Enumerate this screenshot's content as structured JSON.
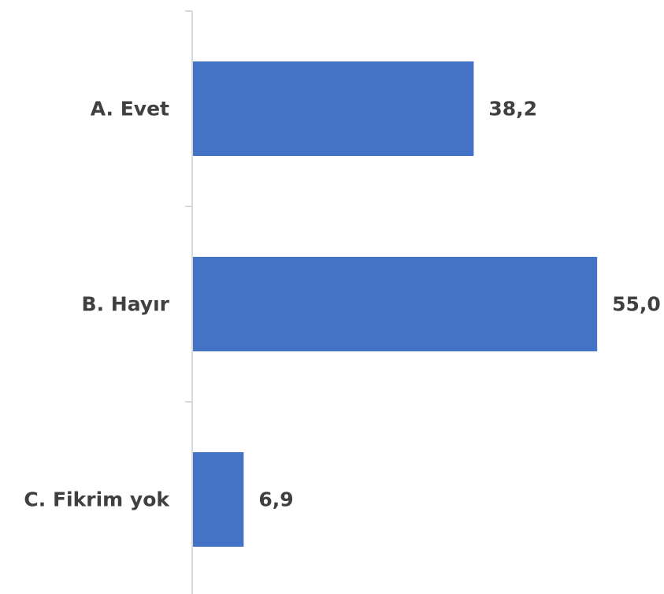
{
  "chart_data": {
    "type": "bar",
    "orientation": "horizontal",
    "categories": [
      "A. Evet",
      "B. Hayır",
      "C. Fikrim yok"
    ],
    "values": [
      38.2,
      55.0,
      6.9
    ],
    "value_labels": [
      "38,2",
      "55,0",
      "6,9"
    ],
    "title": "",
    "xlabel": "",
    "ylabel": "",
    "grid": false,
    "legend": "none",
    "colors": {
      "bar": "#4472C4",
      "axis": "#D9D9D9",
      "text": "#404040"
    }
  }
}
